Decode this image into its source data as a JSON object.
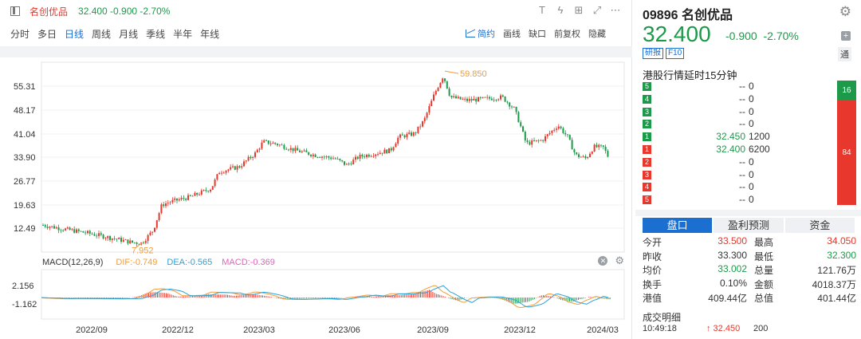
{
  "header": {
    "stock_name": "名创优品",
    "quote": "32.400 -0.900 -2.70%",
    "tool_icons": [
      "text-tool-icon",
      "flash-icon",
      "add-icon",
      "fullscreen-icon",
      "more-icon"
    ]
  },
  "periods": [
    "分时",
    "多日",
    "日线",
    "周线",
    "月线",
    "季线",
    "半年",
    "年线"
  ],
  "active_period": "日线",
  "chart_tools": {
    "simple": "简约",
    "draw": "画线",
    "gap": "缺口",
    "adjust": "前复权",
    "hide": "隐藏"
  },
  "main_chart": {
    "y_ticks": [
      "55.31",
      "48.17",
      "41.04",
      "33.90",
      "26.77",
      "19.63",
      "12.49"
    ],
    "high_label": "59.850",
    "low_label": "7.952"
  },
  "macd": {
    "name": "MACD(12,26,9)",
    "dif": "DIF:-0.749",
    "dea": "DEA:-0.565",
    "macd": "MACD:-0.369",
    "y_ticks": [
      "2.156",
      "-1.162"
    ]
  },
  "x_ticks": [
    "2022/09",
    "2022/12",
    "2023/03",
    "2023/06",
    "2023/09",
    "2023/12",
    "2024/03"
  ],
  "quote_panel": {
    "title": "09896 名创优品",
    "price": "32.400",
    "change": "-0.900",
    "change_pct": "-2.70%",
    "badges": [
      "研报",
      "F10"
    ],
    "tong": "通",
    "delay": "港股行情延时15分钟",
    "ratio_buy": "16",
    "ratio_sell": "84"
  },
  "orderbook": [
    {
      "level": "5",
      "side": "ask",
      "price": "--",
      "vol": "0"
    },
    {
      "level": "4",
      "side": "ask",
      "price": "--",
      "vol": "0"
    },
    {
      "level": "3",
      "side": "ask",
      "price": "--",
      "vol": "0"
    },
    {
      "level": "2",
      "side": "ask",
      "price": "--",
      "vol": "0"
    },
    {
      "level": "1",
      "side": "ask",
      "price": "32.450",
      "vol": "1200"
    },
    {
      "level": "1",
      "side": "bid",
      "price": "32.400",
      "vol": "6200"
    },
    {
      "level": "2",
      "side": "bid",
      "price": "--",
      "vol": "0"
    },
    {
      "level": "3",
      "side": "bid",
      "price": "--",
      "vol": "0"
    },
    {
      "level": "4",
      "side": "bid",
      "price": "--",
      "vol": "0"
    },
    {
      "level": "5",
      "side": "bid",
      "price": "--",
      "vol": "0"
    }
  ],
  "tabs": [
    "盘口",
    "盈利预测",
    "资金"
  ],
  "stats": [
    {
      "l1": "今开",
      "v1": "33.500",
      "c1": "red",
      "l2": "最高",
      "v2": "34.050",
      "c2": "red"
    },
    {
      "l1": "昨收",
      "v1": "33.300",
      "c1": "dark",
      "l2": "最低",
      "v2": "32.300",
      "c2": "green"
    },
    {
      "l1": "均价",
      "v1": "33.002",
      "c1": "green",
      "l2": "总量",
      "v2": "121.76万",
      "c2": "dark"
    },
    {
      "l1": "换手",
      "v1": "0.10%",
      "c1": "dark",
      "l2": "金额",
      "v2": "4018.37万",
      "c2": "dark"
    },
    {
      "l1": "港值",
      "v1": "409.44亿",
      "c1": "dark",
      "l2": "总值",
      "v2": "401.44亿",
      "c2": "dark"
    }
  ],
  "deals": {
    "title": "成交明细",
    "time": "10:49:18",
    "price": "↑ 32.450",
    "vol": "200"
  },
  "colors": {
    "up": "#e8372c",
    "down": "#1c9a4a",
    "accent": "#1b6fd1",
    "dif": "#f29c38",
    "dea": "#2ba2d6"
  }
}
